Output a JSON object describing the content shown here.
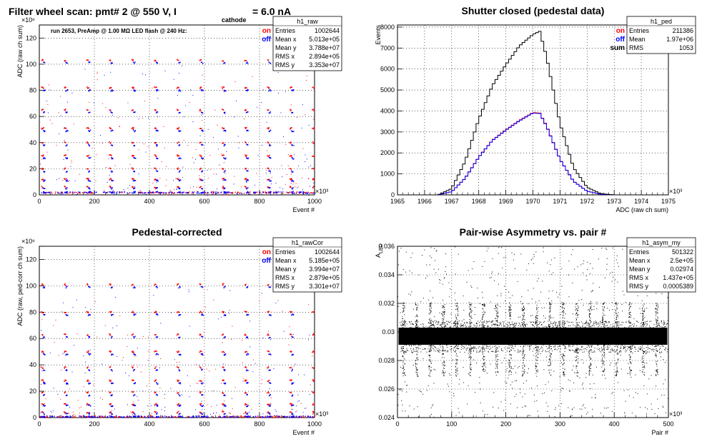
{
  "chart_data": [
    {
      "id": "raw",
      "type": "scatter",
      "title": "Filter wheel scan: pmt#   2 @   550 V, I",
      "title_sub": "cathode",
      "title_tail": "= 6.0 nA",
      "annotation": "run 2653, PreAmp @ 1.00 MΩ  LED flash @  240 Hz:",
      "xlabel": "Event #",
      "ylabel": "ADC (raw ch sum)",
      "x_multiplier": "×10³",
      "y_multiplier": "×10⁶",
      "xlim": [
        0,
        1000
      ],
      "ylim": [
        0,
        130
      ],
      "xticks": [
        0,
        200,
        400,
        600,
        800,
        1000
      ],
      "yticks": [
        0,
        20,
        40,
        60,
        80,
        100,
        120
      ],
      "grid": true,
      "legend": "top-right",
      "series": [
        {
          "name": "on",
          "color": "#ff0000",
          "levels": [
            103,
            82,
            65,
            51,
            40,
            30,
            20,
            12,
            6
          ]
        },
        {
          "name": "off",
          "color": "#0000ff",
          "levels": [
            101,
            80,
            63,
            49,
            38,
            28,
            18,
            11,
            5,
            2
          ]
        }
      ],
      "stats": {
        "name": "h1_raw",
        "rows": [
          [
            "Entries",
            "1002644"
          ],
          [
            "Mean x",
            "5.013e+05"
          ],
          [
            "Mean y",
            "3.788e+07"
          ],
          [
            "RMS x",
            "2.894e+05"
          ],
          [
            "RMS y",
            "3.353e+07"
          ]
        ]
      }
    },
    {
      "id": "ped",
      "type": "line",
      "title": "Shutter closed (pedestal data)",
      "xlabel": "ADC (raw ch sum)",
      "ylabel": "Events",
      "x_multiplier": "×10³",
      "xlim": [
        1965,
        1975
      ],
      "ylim": [
        0,
        8100
      ],
      "xticks": [
        1965,
        1966,
        1967,
        1968,
        1969,
        1970,
        1971,
        1972,
        1973,
        1974,
        1975
      ],
      "yticks": [
        0,
        1000,
        2000,
        3000,
        4000,
        5000,
        6000,
        7000,
        8000
      ],
      "grid": true,
      "legend": "top-right",
      "x": [
        1966.5,
        1967.0,
        1967.5,
        1968.0,
        1968.5,
        1969.0,
        1969.5,
        1970.0,
        1970.25,
        1970.5,
        1971.0,
        1971.5,
        1972.0,
        1972.5,
        1973.0
      ],
      "series": [
        {
          "name": "on",
          "color": "#ff0000",
          "values": [
            0,
            150,
            800,
            1800,
            2600,
            3100,
            3550,
            3920,
            3900,
            3300,
            1700,
            650,
            180,
            30,
            0
          ]
        },
        {
          "name": "off",
          "color": "#0000ff",
          "values": [
            0,
            150,
            790,
            1790,
            2590,
            3080,
            3530,
            3900,
            3880,
            3280,
            1690,
            640,
            175,
            28,
            0
          ]
        },
        {
          "name": "sum",
          "color": "#000000",
          "values": [
            0,
            300,
            1600,
            3600,
            5200,
            6200,
            7100,
            7650,
            7800,
            6600,
            3400,
            1300,
            360,
            60,
            0
          ]
        }
      ],
      "stats": {
        "name": "h1_ped",
        "rows": [
          [
            "Entries",
            "211386"
          ],
          [
            "Mean",
            "1.97e+06"
          ],
          [
            "RMS",
            "1053"
          ]
        ]
      }
    },
    {
      "id": "cor",
      "type": "scatter",
      "title": "Pedestal-corrected",
      "xlabel": "Event #",
      "ylabel": "ADC (raw, ped-corr ch sum)",
      "x_multiplier": "×10³",
      "y_multiplier": "×10⁶",
      "xlim": [
        0,
        1000
      ],
      "ylim": [
        0,
        130
      ],
      "xticks": [
        0,
        200,
        400,
        600,
        800,
        1000
      ],
      "yticks": [
        0,
        20,
        40,
        60,
        80,
        100,
        120
      ],
      "grid": true,
      "legend": "top-right",
      "series": [
        {
          "name": "on",
          "color": "#ff0000",
          "levels": [
            101,
            80,
            63,
            50,
            38,
            28,
            19,
            10,
            4
          ]
        },
        {
          "name": "off",
          "color": "#0000ff",
          "levels": [
            99,
            78,
            61,
            48,
            36,
            26,
            17,
            9,
            3,
            0.5
          ]
        }
      ],
      "stats": {
        "name": "h1_rawCor",
        "rows": [
          [
            "Entries",
            "1002644"
          ],
          [
            "Mean x",
            "5.185e+05"
          ],
          [
            "Mean y",
            "3.994e+07"
          ],
          [
            "RMS x",
            "2.879e+05"
          ],
          [
            "RMS y",
            "3.301e+07"
          ]
        ]
      }
    },
    {
      "id": "asym",
      "type": "scatter",
      "title": "Pair-wise Asymmetry vs. pair #",
      "xlabel": "Pair #",
      "ylabel": "A",
      "ylabel_sub": "LED",
      "x_multiplier": "×10³",
      "xlim": [
        0,
        500
      ],
      "ylim": [
        0.024,
        0.036
      ],
      "xticks": [
        0,
        100,
        200,
        300,
        400,
        500
      ],
      "yticks": [
        0.024,
        0.026,
        0.028,
        0.03,
        0.032,
        0.034,
        0.036
      ],
      "grid": true,
      "center": 0.0297,
      "band_halfwidth": 0.0006,
      "stats": {
        "name": "h1_asym_my",
        "rows": [
          [
            "Entries",
            "501322"
          ],
          [
            "Mean x",
            "2.5e+05"
          ],
          [
            "Mean y",
            "0.02974"
          ],
          [
            "RMS x",
            "1.437e+05"
          ],
          [
            "RMS y",
            "0.0005389"
          ]
        ]
      }
    }
  ]
}
